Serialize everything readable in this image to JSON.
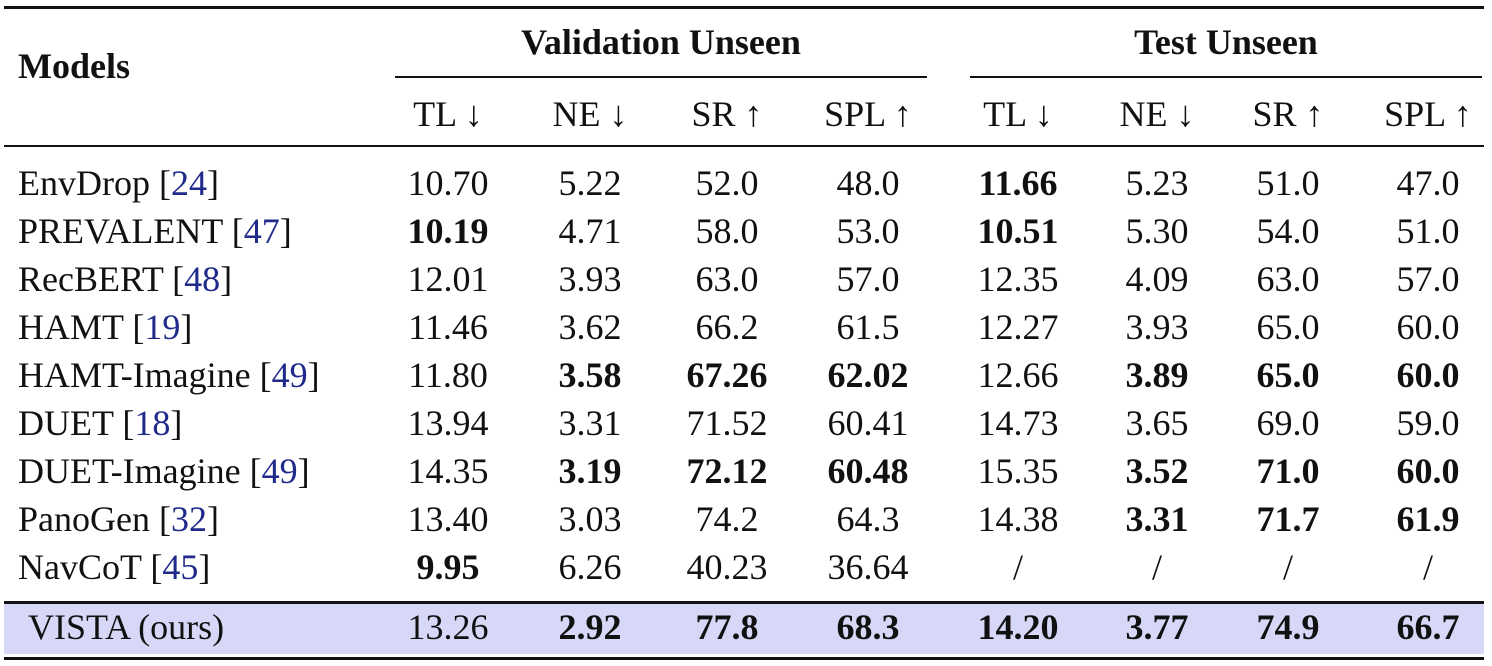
{
  "header": {
    "models": "Models",
    "groups": [
      "Validation Unseen",
      "Test Unseen"
    ],
    "metrics": [
      "TL ↓",
      "NE ↓",
      "SR ↑",
      "SPL ↑",
      "TL ↓",
      "NE ↓",
      "SR ↑",
      "SPL ↑"
    ]
  },
  "rows": [
    {
      "model": "EnvDrop",
      "cite": "24",
      "values": [
        "10.70",
        "5.22",
        "52.0",
        "48.0",
        "11.66",
        "5.23",
        "51.0",
        "47.0"
      ],
      "bold": [
        4
      ]
    },
    {
      "model": "PREVALENT",
      "cite": "47",
      "values": [
        "10.19",
        "4.71",
        "58.0",
        "53.0",
        "10.51",
        "5.30",
        "54.0",
        "51.0"
      ],
      "bold": [
        0,
        4
      ]
    },
    {
      "model": "RecBERT",
      "cite": "48",
      "values": [
        "12.01",
        "3.93",
        "63.0",
        "57.0",
        "12.35",
        "4.09",
        "63.0",
        "57.0"
      ],
      "bold": []
    },
    {
      "model": "HAMT",
      "cite": "19",
      "values": [
        "11.46",
        "3.62",
        "66.2",
        "61.5",
        "12.27",
        "3.93",
        "65.0",
        "60.0"
      ],
      "bold": []
    },
    {
      "model": "HAMT-Imagine",
      "cite": "49",
      "values": [
        "11.80",
        "3.58",
        "67.26",
        "62.02",
        "12.66",
        "3.89",
        "65.0",
        "60.0"
      ],
      "bold": [
        1,
        2,
        3,
        5,
        6,
        7
      ]
    },
    {
      "model": "DUET",
      "cite": "18",
      "values": [
        "13.94",
        "3.31",
        "71.52",
        "60.41",
        "14.73",
        "3.65",
        "69.0",
        "59.0"
      ],
      "bold": []
    },
    {
      "model": "DUET-Imagine",
      "cite": "49",
      "values": [
        "14.35",
        "3.19",
        "72.12",
        "60.48",
        "15.35",
        "3.52",
        "71.0",
        "60.0"
      ],
      "bold": [
        1,
        2,
        3,
        5,
        6,
        7
      ]
    },
    {
      "model": "PanoGen",
      "cite": "32",
      "values": [
        "13.40",
        "3.03",
        "74.2",
        "64.3",
        "14.38",
        "3.31",
        "71.7",
        "61.9"
      ],
      "bold": [
        5,
        6,
        7
      ]
    },
    {
      "model": "NavCoT",
      "cite": "45",
      "values": [
        "9.95",
        "6.26",
        "40.23",
        "36.64",
        "/",
        "/",
        "/",
        "/"
      ],
      "bold": [
        0
      ]
    }
  ],
  "ours": {
    "model": "VISTA (ours)",
    "values": [
      "13.26",
      "2.92",
      "77.8",
      "68.3",
      "14.20",
      "3.77",
      "74.9",
      "66.7"
    ],
    "bold": [
      1,
      2,
      3,
      4,
      5,
      6,
      7
    ]
  }
}
